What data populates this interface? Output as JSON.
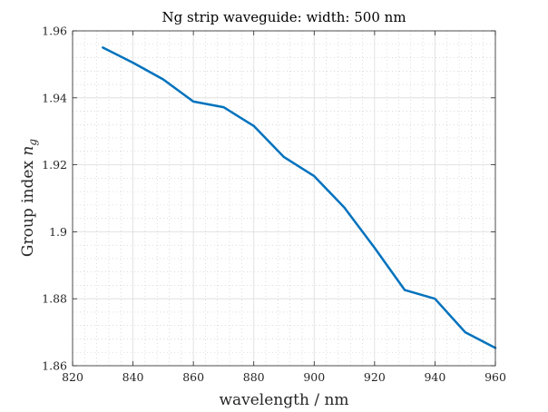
{
  "chart_data": {
    "type": "line",
    "title": "Ng strip waveguide: width: 500 nm",
    "xlabel": "wavelength / nm",
    "ylabel_main": "Group index ",
    "ylabel_symbol": "n",
    "ylabel_subscript": "g",
    "xlim": [
      820,
      960
    ],
    "ylim": [
      1.86,
      1.96
    ],
    "xticks": [
      "820",
      "840",
      "860",
      "880",
      "900",
      "920",
      "940",
      "960"
    ],
    "yticks": [
      "1.86",
      "1.88",
      "1.9",
      "1.92",
      "1.94",
      "1.96"
    ],
    "grid": true,
    "minor_grid": true,
    "line_color": "#0072BD",
    "series": [
      {
        "x": [
          830,
          840,
          850,
          860,
          870,
          880,
          890,
          900,
          910,
          920,
          930,
          940,
          950,
          960
        ],
        "values": [
          1.955,
          1.9505,
          1.9455,
          1.9389,
          1.9372,
          1.9316,
          1.9223,
          1.9166,
          1.9072,
          1.8952,
          1.8826,
          1.88,
          1.87,
          1.8653
        ]
      }
    ]
  }
}
